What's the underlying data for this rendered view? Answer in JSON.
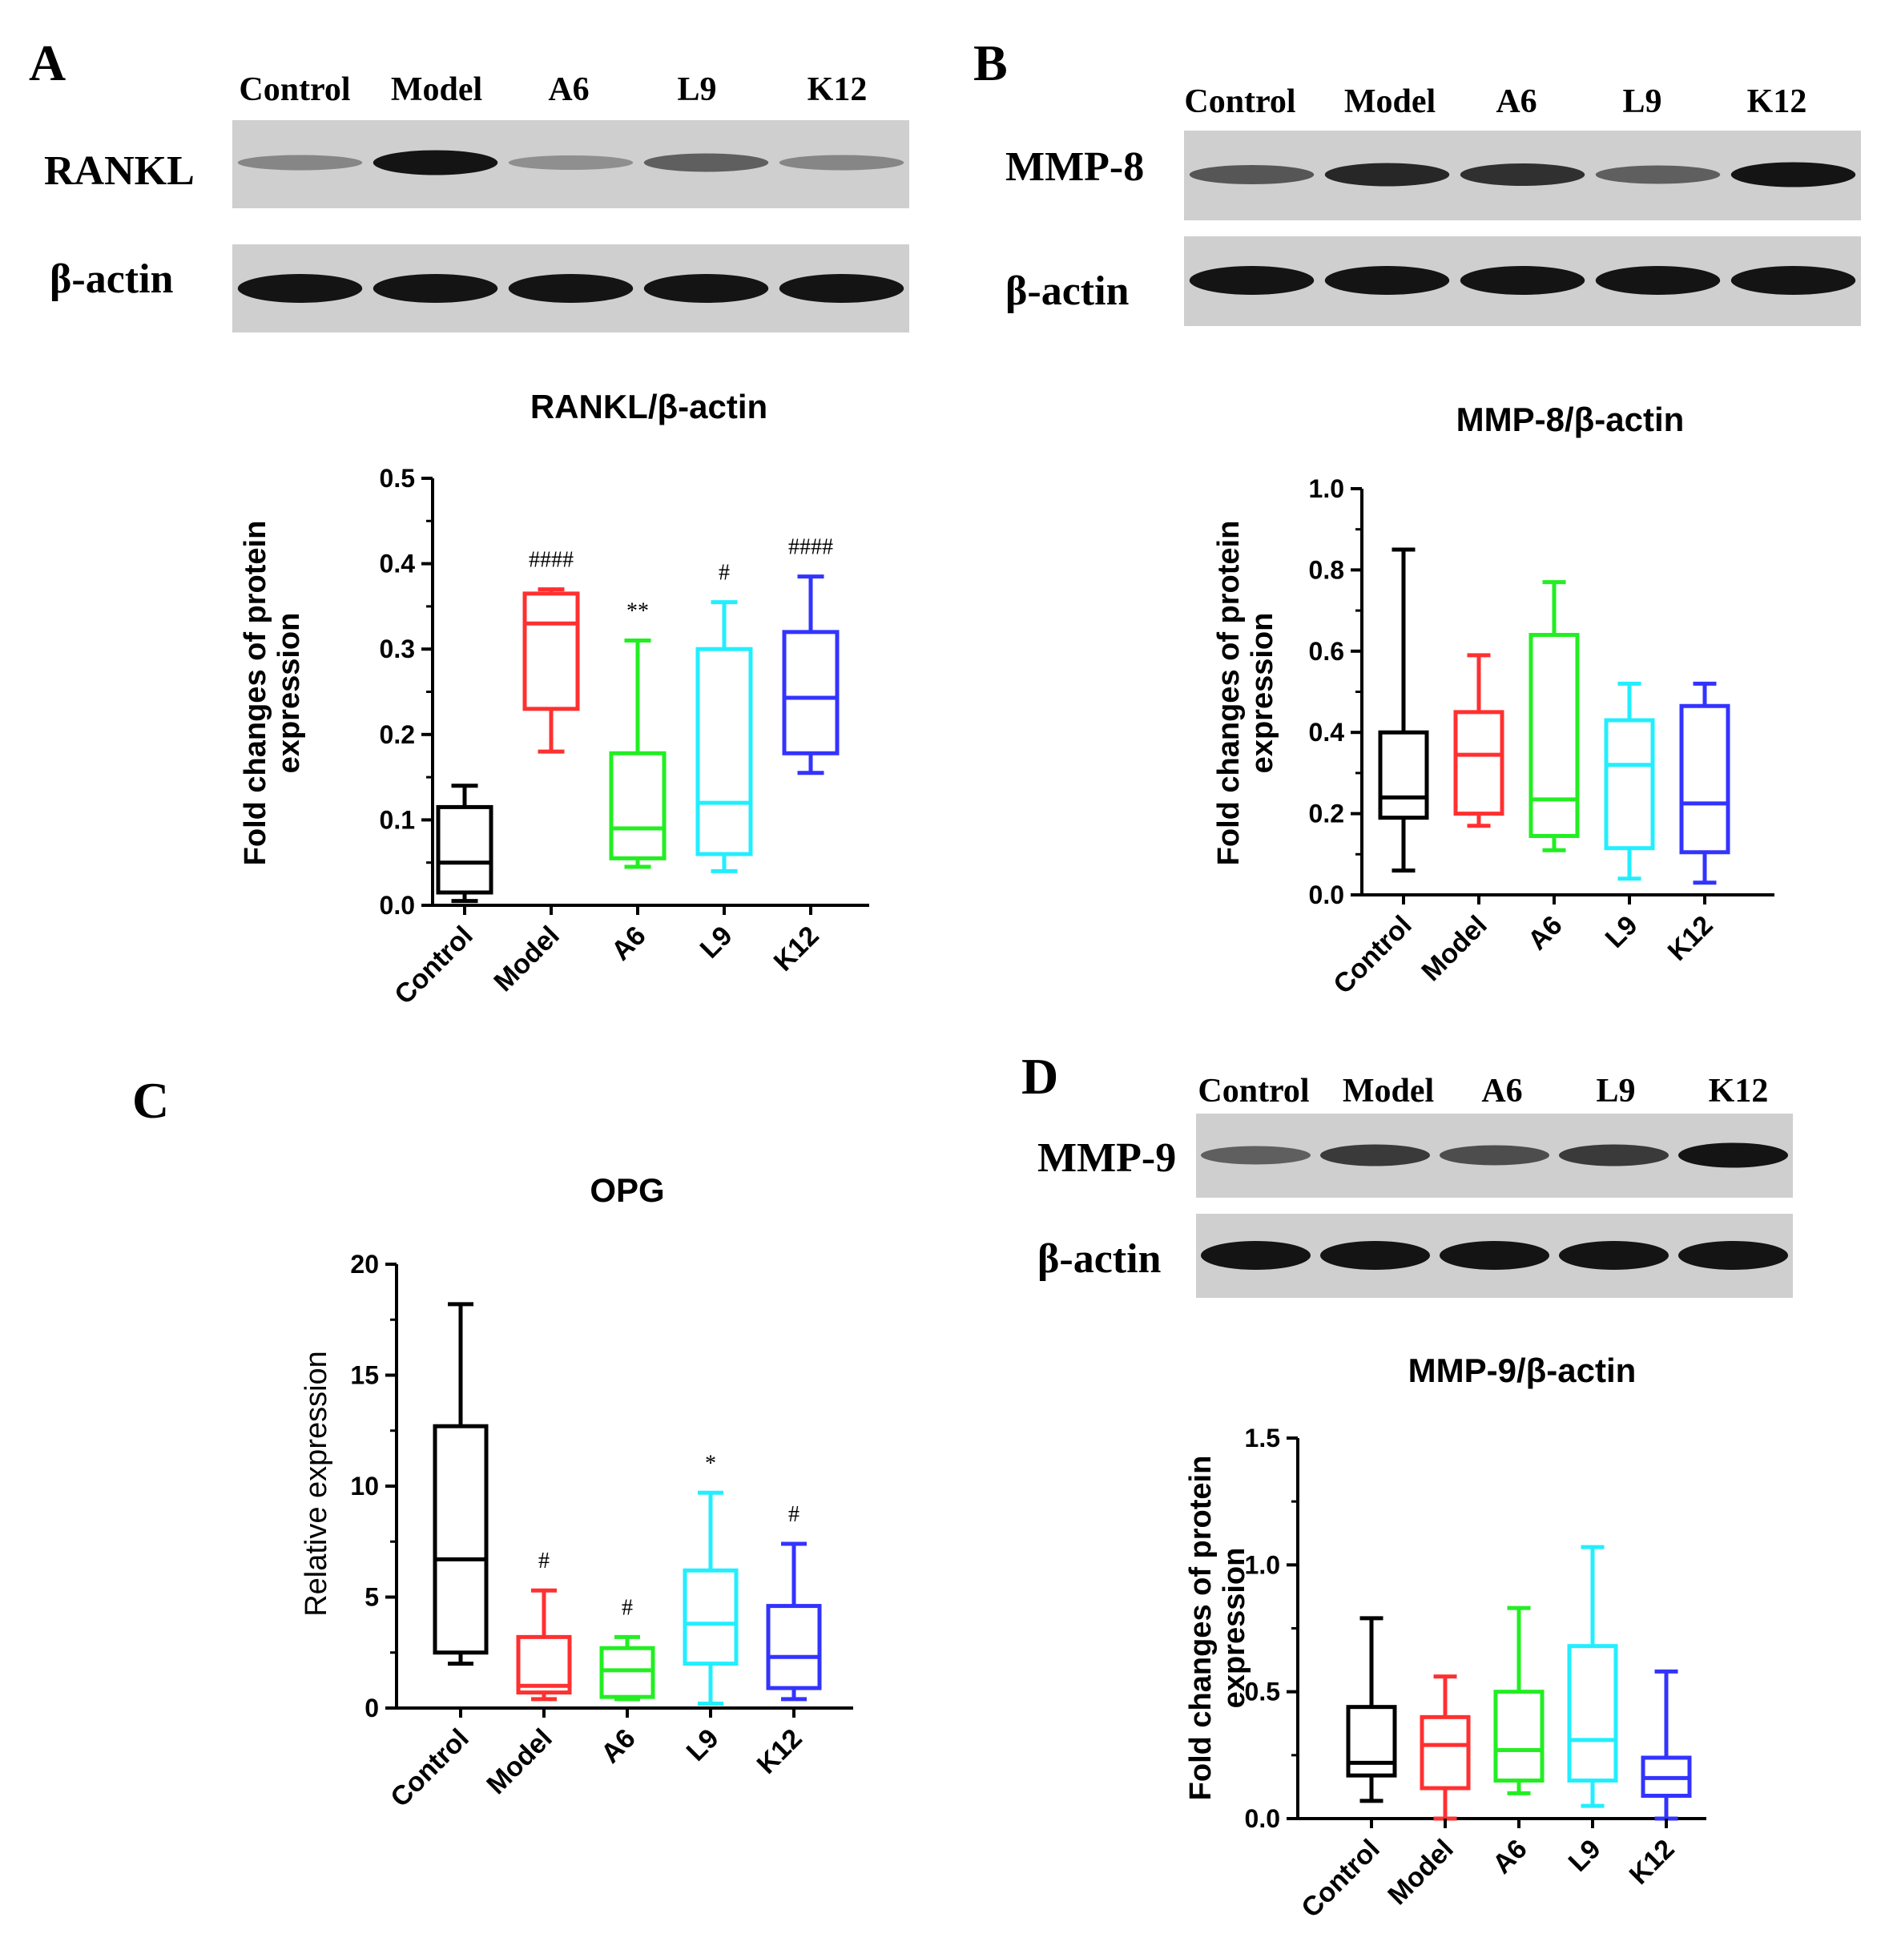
{
  "blots": [
    {
      "panel": "A",
      "lane_labels": [
        "Control",
        "Model",
        "A6",
        "L9",
        "K12"
      ],
      "rows": [
        {
          "label": "RANKL",
          "intensity": [
            0.35,
            0.95,
            0.3,
            0.55,
            0.35
          ]
        },
        {
          "label": "β-actin",
          "intensity": [
            0.95,
            0.95,
            0.95,
            0.95,
            0.95
          ]
        }
      ]
    },
    {
      "panel": "B",
      "lane_labels": [
        "Control",
        "Model",
        "A6",
        "L9",
        "K12"
      ],
      "rows": [
        {
          "label": "MMP-8",
          "intensity": [
            0.6,
            0.85,
            0.8,
            0.55,
            0.95
          ]
        },
        {
          "label": "β-actin",
          "intensity": [
            0.95,
            0.95,
            0.95,
            0.95,
            0.95
          ]
        }
      ]
    },
    {
      "panel": "D",
      "lane_labels": [
        "Control",
        "Model",
        "A6",
        "L9",
        "K12"
      ],
      "rows": [
        {
          "label": "MMP-9",
          "intensity": [
            0.55,
            0.75,
            0.65,
            0.75,
            0.95
          ]
        },
        {
          "label": "β-actin",
          "intensity": [
            0.95,
            0.95,
            0.95,
            0.95,
            0.95
          ]
        }
      ]
    }
  ],
  "colors": {
    "Control": "#000000",
    "Model": "#ff3030",
    "A6": "#22ee22",
    "L9": "#22eeff",
    "K12": "#3333ff"
  },
  "chart_data": [
    {
      "panel": "A",
      "type": "box",
      "title": "RANKL/β-actin",
      "ylabel": "Fold changes  of protein\nexpression",
      "ylim": [
        0,
        0.5
      ],
      "yticks": [
        "0.0",
        "0.1",
        "0.2",
        "0.3",
        "0.4",
        "0.5"
      ],
      "categories": [
        "Control",
        "Model",
        "A6",
        "L9",
        "K12"
      ],
      "boxes": [
        {
          "min": 0.005,
          "q1": 0.015,
          "median": 0.05,
          "q3": 0.115,
          "max": 0.14,
          "annotation": ""
        },
        {
          "min": 0.18,
          "q1": 0.23,
          "median": 0.33,
          "q3": 0.365,
          "max": 0.37,
          "annotation": "####"
        },
        {
          "min": 0.045,
          "q1": 0.055,
          "median": 0.09,
          "q3": 0.178,
          "max": 0.31,
          "annotation": "**"
        },
        {
          "min": 0.04,
          "q1": 0.06,
          "median": 0.12,
          "q3": 0.3,
          "max": 0.355,
          "annotation": "#"
        },
        {
          "min": 0.155,
          "q1": 0.178,
          "median": 0.243,
          "q3": 0.32,
          "max": 0.385,
          "annotation": "####"
        }
      ]
    },
    {
      "panel": "B",
      "type": "box",
      "title": "MMP-8/β-actin",
      "ylabel": "Fold changes  of protein\nexpression",
      "ylim": [
        0,
        1.0
      ],
      "yticks": [
        "0.0",
        "0.2",
        "0.4",
        "0.6",
        "0.8",
        "1.0"
      ],
      "categories": [
        "Control",
        "Model",
        "A6",
        "L9",
        "K12"
      ],
      "boxes": [
        {
          "min": 0.06,
          "q1": 0.19,
          "median": 0.24,
          "q3": 0.4,
          "max": 0.85,
          "annotation": ""
        },
        {
          "min": 0.17,
          "q1": 0.2,
          "median": 0.345,
          "q3": 0.45,
          "max": 0.59,
          "annotation": ""
        },
        {
          "min": 0.11,
          "q1": 0.145,
          "median": 0.235,
          "q3": 0.64,
          "max": 0.77,
          "annotation": ""
        },
        {
          "min": 0.04,
          "q1": 0.115,
          "median": 0.32,
          "q3": 0.43,
          "max": 0.52,
          "annotation": ""
        },
        {
          "min": 0.03,
          "q1": 0.105,
          "median": 0.225,
          "q3": 0.465,
          "max": 0.52,
          "annotation": ""
        }
      ]
    },
    {
      "panel": "C",
      "type": "box",
      "title": "OPG",
      "ylabel": "Relative expression",
      "ylim": [
        0,
        20
      ],
      "yticks": [
        "0",
        "5",
        "10",
        "15",
        "20"
      ],
      "categories": [
        "Control",
        "Model",
        "A6",
        "L9",
        "K12"
      ],
      "boxes": [
        {
          "min": 2.0,
          "q1": 2.5,
          "median": 6.7,
          "q3": 12.7,
          "max": 18.2,
          "annotation": ""
        },
        {
          "min": 0.4,
          "q1": 0.7,
          "median": 1.0,
          "q3": 3.2,
          "max": 5.3,
          "annotation": "#"
        },
        {
          "min": 0.4,
          "q1": 0.5,
          "median": 1.7,
          "q3": 2.7,
          "max": 3.2,
          "annotation": "#"
        },
        {
          "min": 0.2,
          "q1": 2.0,
          "median": 3.8,
          "q3": 6.2,
          "max": 9.7,
          "annotation": "*"
        },
        {
          "min": 0.4,
          "q1": 0.9,
          "median": 2.3,
          "q3": 4.6,
          "max": 7.4,
          "annotation": "#"
        }
      ]
    },
    {
      "panel": "D",
      "type": "box",
      "title": "MMP-9/β-actin",
      "ylabel": "Fold changes  of protein\nexpression",
      "ylim": [
        0,
        1.5
      ],
      "yticks": [
        "0.0",
        "0.5",
        "1.0",
        "1.5"
      ],
      "categories": [
        "Control",
        "Model",
        "A6",
        "L9",
        "K12"
      ],
      "boxes": [
        {
          "min": 0.07,
          "q1": 0.17,
          "median": 0.22,
          "q3": 0.44,
          "max": 0.79,
          "annotation": ""
        },
        {
          "min": 0.0,
          "q1": 0.12,
          "median": 0.29,
          "q3": 0.4,
          "max": 0.56,
          "annotation": ""
        },
        {
          "min": 0.1,
          "q1": 0.15,
          "median": 0.27,
          "q3": 0.5,
          "max": 0.83,
          "annotation": ""
        },
        {
          "min": 0.05,
          "q1": 0.15,
          "median": 0.31,
          "q3": 0.68,
          "max": 1.07,
          "annotation": ""
        },
        {
          "min": 0.0,
          "q1": 0.09,
          "median": 0.16,
          "q3": 0.24,
          "max": 0.58,
          "annotation": ""
        }
      ]
    }
  ]
}
